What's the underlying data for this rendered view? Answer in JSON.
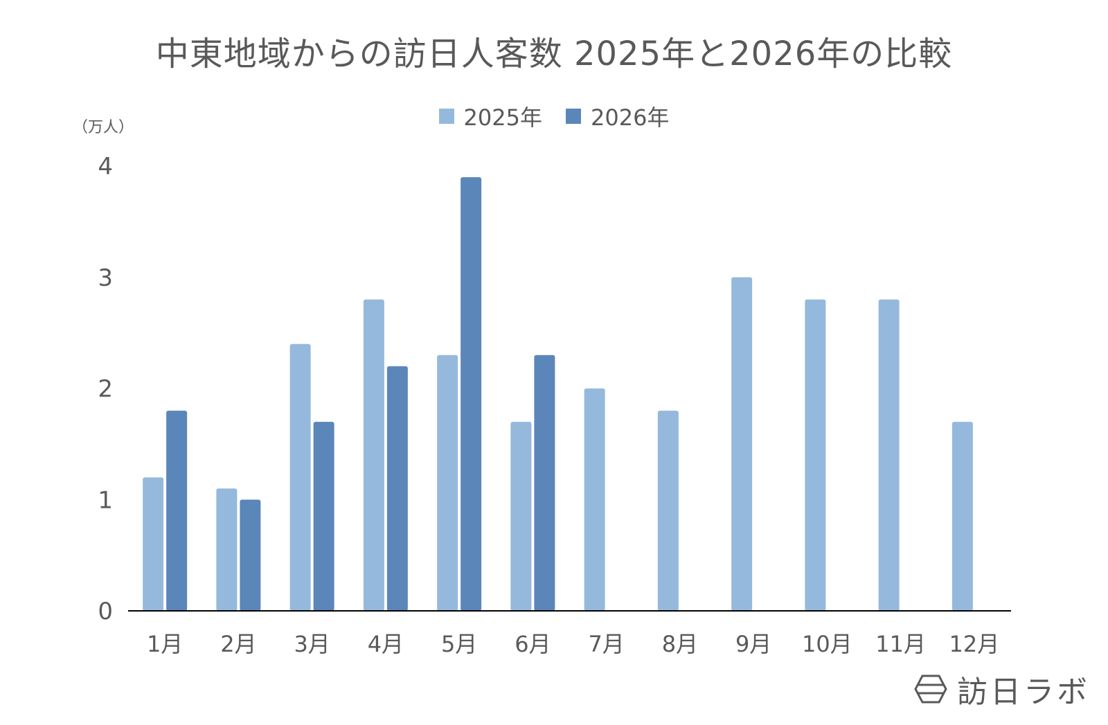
{
  "chart_data": {
    "type": "bar",
    "title": "中東地域からの訪日人客数 2025年と2026年の比較",
    "ylabel": "（万人）",
    "categories": [
      "1月",
      "2月",
      "3月",
      "4月",
      "5月",
      "6月",
      "7月",
      "8月",
      "9月",
      "10月",
      "11月",
      "12月"
    ],
    "series": [
      {
        "name": "2025年",
        "color": "#95b9dc",
        "values": [
          1.2,
          1.1,
          2.4,
          2.8,
          2.3,
          1.7,
          2.0,
          1.8,
          3.0,
          2.8,
          2.8,
          1.7
        ]
      },
      {
        "name": "2026年",
        "color": "#5b86b9",
        "values": [
          1.8,
          1.0,
          1.7,
          2.2,
          3.9,
          2.3,
          null,
          null,
          null,
          null,
          null,
          null
        ]
      }
    ],
    "ylim": [
      0,
      4
    ],
    "yticks": [
      0,
      1,
      2,
      3,
      4
    ],
    "grid": false,
    "legend_position": "top"
  },
  "logo": {
    "text": "訪日ラボ",
    "icon": "hexagon-logo-icon"
  },
  "colors": {
    "axis": "#000000",
    "text": "#595959"
  }
}
